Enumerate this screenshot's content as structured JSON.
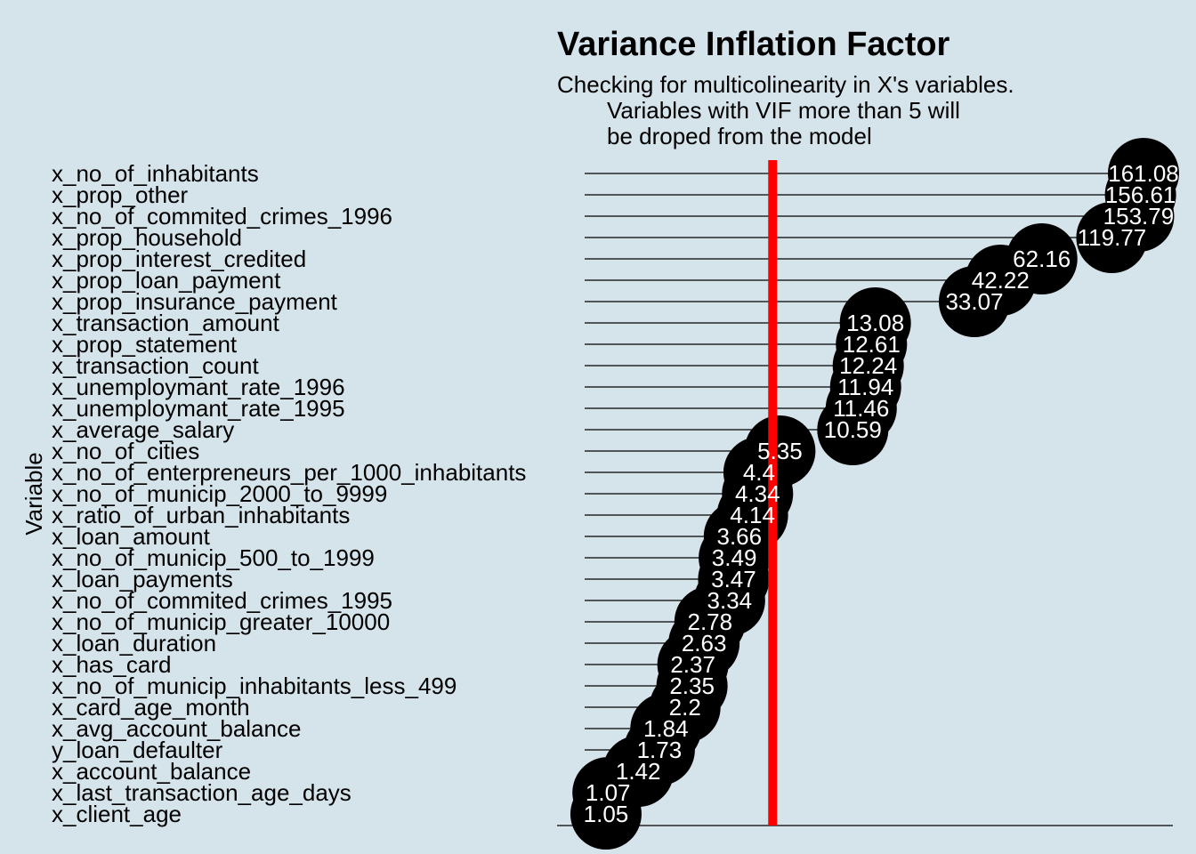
{
  "chart_data": {
    "type": "lollipop",
    "title": "Variance Inflation Factor",
    "subtitle_lines": [
      "Checking for multicolinearity in X's variables.",
      "Variables with VIF more than 5 will",
      "be droped from the model"
    ],
    "ylabel": "Variable",
    "xlabel": "",
    "threshold": 5,
    "threshold_color": "#ff0000",
    "point_color": "#000000",
    "label_color": "#ffffff",
    "background_color": "#d5e4eb",
    "categories": [
      "x_no_of_inhabitants",
      "x_prop_other",
      "x_no_of_commited_crimes_1996",
      "x_prop_household",
      "x_prop_interest_credited",
      "x_prop_loan_payment",
      "x_prop_insurance_payment",
      "x_transaction_amount",
      "x_prop_statement",
      "x_transaction_count",
      "x_unemploymant_rate_1996",
      "x_unemploymant_rate_1995",
      "x_average_salary",
      "x_no_of_cities",
      "x_no_of_enterpreneurs_per_1000_inhabitants",
      "x_no_of_municip_2000_to_9999",
      "x_ratio_of_urban_inhabitants",
      "x_loan_amount",
      "x_no_of_municip_500_to_1999",
      "x_loan_payments",
      "x_no_of_commited_crimes_1995",
      "x_no_of_municip_greater_10000",
      "x_loan_duration",
      "x_has_card",
      "x_no_of_municip_inhabitants_less_499",
      "x_card_age_month",
      "x_avg_account_balance",
      "y_loan_defaulter",
      "x_account_balance",
      "x_last_transaction_age_days",
      "x_client_age"
    ],
    "values": [
      161.08,
      156.61,
      153.79,
      119.77,
      62.16,
      42.22,
      33.07,
      13.08,
      12.61,
      12.24,
      11.94,
      11.46,
      10.59,
      5.35,
      4.4,
      4.34,
      4.14,
      3.66,
      3.49,
      3.47,
      3.34,
      2.78,
      2.63,
      2.37,
      2.35,
      2.2,
      1.84,
      1.73,
      1.42,
      1.07,
      1.05
    ],
    "labels": [
      "161.08",
      "156.61",
      "153.79",
      "119.77",
      "62.16",
      "42.22",
      "33.07",
      "13.08",
      "12.61",
      "12.24",
      "11.94",
      "11.46",
      "10.59",
      "5.35",
      "4.4",
      "4.34",
      "4.14",
      "3.66",
      "3.49",
      "3.47",
      "3.34",
      "2.78",
      "2.63",
      "2.37",
      "2.35",
      "2.2",
      "1.84",
      "1.73",
      "1.42",
      "1.07",
      "1.05"
    ],
    "x_scale": "log",
    "xlim": [
      1,
      220
    ],
    "grid": false
  }
}
